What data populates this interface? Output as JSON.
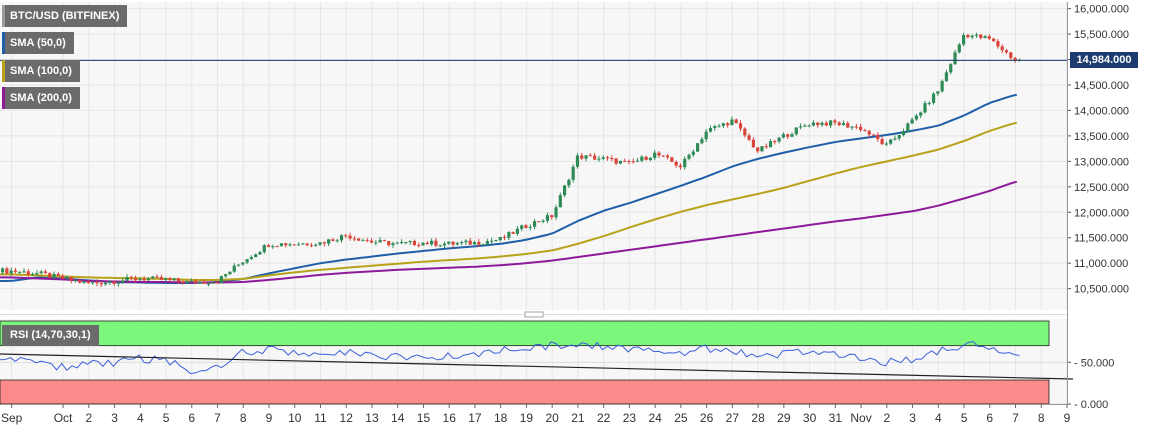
{
  "legend": {
    "main": "BTC/USD (BITFINEX)",
    "sma50": "SMA (50,0)",
    "sma100": "SMA (100,0)",
    "sma200": "SMA (200,0)",
    "rsi": "RSI (14,70,30,1)"
  },
  "colors": {
    "up": "#2e8b57",
    "down": "#d9443a",
    "sma50": "#1f5fa8",
    "sma100": "#b8a21a",
    "sma200": "#8e1a9a",
    "rsi_line": "#3b5fd9",
    "rsi_overbought": "#7cf77c",
    "rsi_oversold": "#fb8a8a",
    "price_line": "#1c3b6e"
  },
  "chart_data": [
    {
      "type": "candlestick",
      "title": "BTC/USD (BITFINEX)",
      "current_price": "14,984.000",
      "y_ticks": [
        "16,000.000",
        "15,500.000",
        "15,000.000",
        "14,500.000",
        "14,000.000",
        "13,500.000",
        "13,000.000",
        "12,500.000",
        "12,000.000",
        "11,500.000",
        "11,000.000",
        "10,500.000"
      ],
      "y_tick_values": [
        16000,
        15500,
        15000,
        14500,
        14000,
        13500,
        13000,
        12500,
        12000,
        11500,
        11000,
        10500
      ],
      "ylim": [
        10080,
        16130
      ],
      "x_ticks": [
        "Sep",
        "Oct",
        "2",
        "3",
        "4",
        "5",
        "6",
        "7",
        "8",
        "9",
        "10",
        "11",
        "12",
        "13",
        "14",
        "15",
        "16",
        "17",
        "18",
        "19",
        "20",
        "21",
        "22",
        "23",
        "24",
        "25",
        "26",
        "27",
        "28",
        "29",
        "30",
        "31",
        "Nov",
        "2",
        "3",
        "4",
        "5",
        "6",
        "7",
        "8",
        "9"
      ],
      "x_tick_days": [
        -2,
        0,
        1,
        2,
        3,
        4,
        5,
        6,
        7,
        8,
        9,
        10,
        11,
        12,
        13,
        14,
        15,
        16,
        17,
        18,
        19,
        20,
        21,
        22,
        23,
        24,
        25,
        26,
        27,
        28,
        29,
        30,
        31,
        32,
        33,
        34,
        35,
        36,
        37,
        38,
        39
      ],
      "x_day_range": [
        -2.45,
        39.0
      ],
      "daily_closes": [
        10850,
        10800,
        10700,
        10600,
        10650,
        10700,
        10670,
        10620,
        10650,
        11050,
        11380,
        11380,
        11400,
        11550,
        11420,
        11380,
        11400,
        11380,
        11400,
        11470,
        11740,
        11930,
        13100,
        13050,
        12950,
        13150,
        12900,
        13600,
        13800,
        13200,
        13500,
        13750,
        13750,
        13650,
        13300,
        13800,
        14400,
        15500,
        15400,
        14984
      ],
      "sma": [
        {
          "name": "SMA (50,0)",
          "values": [
            10650,
            10720,
            10700,
            10660,
            10630,
            10620,
            10610,
            10610,
            10630,
            10690,
            10800,
            10900,
            11000,
            11070,
            11130,
            11190,
            11240,
            11290,
            11330,
            11380,
            11460,
            11580,
            11830,
            12030,
            12180,
            12350,
            12520,
            12700,
            12900,
            13050,
            13170,
            13280,
            13380,
            13450,
            13520,
            13600,
            13700,
            13900,
            14150,
            14310
          ]
        },
        {
          "name": "SMA (100,0)",
          "values": [
            10780,
            10760,
            10740,
            10720,
            10710,
            10700,
            10690,
            10670,
            10670,
            10690,
            10760,
            10820,
            10870,
            10910,
            10950,
            10990,
            11030,
            11060,
            11090,
            11130,
            11180,
            11250,
            11380,
            11530,
            11700,
            11860,
            12010,
            12140,
            12250,
            12360,
            12480,
            12620,
            12760,
            12890,
            13000,
            13110,
            13230,
            13400,
            13600,
            13760
          ]
        },
        {
          "name": "SMA (200,0)",
          "values": [
            10720,
            10700,
            10680,
            10650,
            10640,
            10630,
            10630,
            10620,
            10620,
            10630,
            10670,
            10720,
            10770,
            10810,
            10840,
            10870,
            10890,
            10910,
            10930,
            10960,
            11000,
            11050,
            11120,
            11190,
            11260,
            11330,
            11400,
            11470,
            11540,
            11610,
            11680,
            11750,
            11820,
            11880,
            11950,
            12020,
            12130,
            12270,
            12420,
            12600
          ]
        }
      ]
    },
    {
      "type": "line",
      "title": "RSI (14,70,30,1)",
      "y_ticks": [
        "50.000",
        "0.000"
      ],
      "y_tick_values": [
        50,
        0
      ],
      "ylim": [
        0,
        102
      ],
      "overbought": 70,
      "oversold": 30,
      "daily_rsi": [
        55,
        52,
        44,
        48,
        50,
        55,
        52,
        40,
        46,
        62,
        66,
        60,
        62,
        62,
        58,
        56,
        55,
        57,
        60,
        64,
        68,
        70,
        72,
        70,
        65,
        66,
        60,
        66,
        64,
        55,
        60,
        62,
        58,
        55,
        50,
        52,
        62,
        72,
        70,
        55
      ],
      "trendline": {
        "from": [
          -2.45,
          60
        ],
        "to": [
          39.0,
          30
        ]
      }
    }
  ]
}
